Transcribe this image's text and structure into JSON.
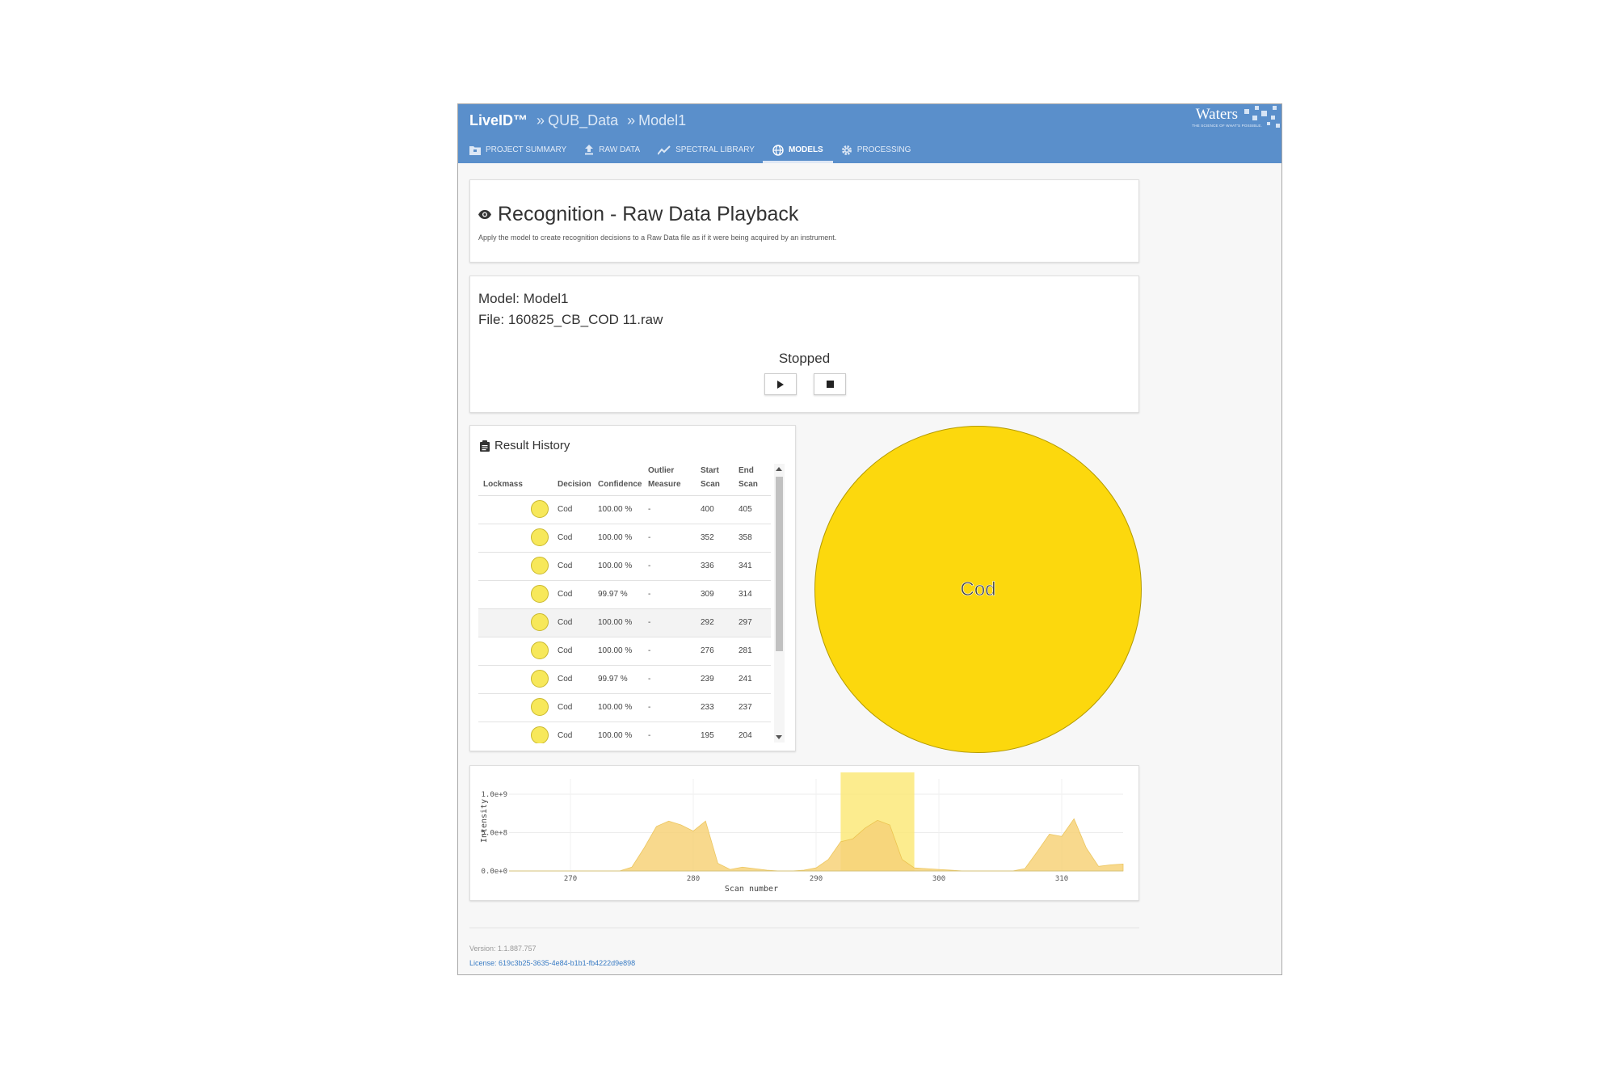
{
  "app": {
    "brand": "LiveID™",
    "breadcrumb_sep": "»",
    "breadcrumb_1": "QUB_Data",
    "breadcrumb_2": "Model1",
    "logo_text": "Waters",
    "logo_tagline": "THE SCIENCE OF WHAT'S POSSIBLE."
  },
  "nav": {
    "items": [
      {
        "label": "PROJECT SUMMARY",
        "icon": "folder-icon"
      },
      {
        "label": "RAW DATA",
        "icon": "upload-icon"
      },
      {
        "label": "SPECTRAL LIBRARY",
        "icon": "line-chart-icon"
      },
      {
        "label": "MODELS",
        "icon": "globe-icon",
        "active": true
      },
      {
        "label": "PROCESSING",
        "icon": "gear-icon"
      }
    ]
  },
  "header": {
    "title": "Recognition - Raw Data Playback",
    "subtitle": "Apply the model to create recognition decisions to a Raw Data file as if it were being acquired by an instrument."
  },
  "playback": {
    "model_line": "Model: Model1",
    "file_line": "File: 160825_CB_COD 11.raw",
    "status": "Stopped"
  },
  "history": {
    "title": "Result History",
    "columns": [
      "Lockmass",
      "Decision",
      "Confidence",
      "Outlier Measure",
      "Start Scan",
      "End Scan"
    ],
    "rows": [
      {
        "decision": "Cod",
        "confidence": "100.00 %",
        "outlier": "-",
        "start": "400",
        "end": "405"
      },
      {
        "decision": "Cod",
        "confidence": "100.00 %",
        "outlier": "-",
        "start": "352",
        "end": "358"
      },
      {
        "decision": "Cod",
        "confidence": "100.00 %",
        "outlier": "-",
        "start": "336",
        "end": "341"
      },
      {
        "decision": "Cod",
        "confidence": "99.97 %",
        "outlier": "-",
        "start": "309",
        "end": "314"
      },
      {
        "decision": "Cod",
        "confidence": "100.00 %",
        "outlier": "-",
        "start": "292",
        "end": "297"
      },
      {
        "decision": "Cod",
        "confidence": "100.00 %",
        "outlier": "-",
        "start": "276",
        "end": "281"
      },
      {
        "decision": "Cod",
        "confidence": "99.97 %",
        "outlier": "-",
        "start": "239",
        "end": "241"
      },
      {
        "decision": "Cod",
        "confidence": "100.00 %",
        "outlier": "-",
        "start": "233",
        "end": "237"
      },
      {
        "decision": "Cod",
        "confidence": "100.00 %",
        "outlier": "-",
        "start": "195",
        "end": "204"
      }
    ]
  },
  "pie": {
    "label": "Cod",
    "color": "#fcd80d",
    "values": [
      {
        "name": "Cod",
        "value": 100
      }
    ]
  },
  "colors": {
    "header_bg": "#5a8fcb",
    "area_fill": "#f7d37a",
    "highlight": "#fbe97a",
    "link": "#3a7cc4"
  },
  "chart_data": {
    "type": "area",
    "xlabel": "Scan number",
    "ylabel": "Intensity",
    "xlim": [
      265,
      315
    ],
    "ylim": [
      0,
      1200000000
    ],
    "xticks": [
      "270",
      "280",
      "290",
      "300",
      "310"
    ],
    "yticks": [
      "0.0e+0",
      "5.0e+8",
      "1.0e+9"
    ],
    "highlight_range": [
      292,
      298
    ],
    "x": [
      265,
      274,
      275,
      276,
      277,
      278,
      279,
      280,
      281,
      282,
      283,
      284,
      285,
      286,
      287,
      288,
      289,
      290,
      291,
      292,
      293,
      294,
      295,
      296,
      297,
      298,
      299,
      300,
      301,
      302,
      303,
      304,
      305,
      306,
      307,
      308,
      309,
      310,
      311,
      312,
      313,
      314,
      315
    ],
    "y": [
      0,
      0,
      50000000,
      300000000,
      580000000,
      650000000,
      600000000,
      520000000,
      650000000,
      100000000,
      20000000,
      50000000,
      30000000,
      10000000,
      0,
      0,
      10000000,
      40000000,
      150000000,
      380000000,
      420000000,
      560000000,
      660000000,
      600000000,
      150000000,
      40000000,
      30000000,
      20000000,
      10000000,
      0,
      0,
      0,
      0,
      0,
      30000000,
      250000000,
      480000000,
      450000000,
      680000000,
      300000000,
      60000000,
      80000000,
      90000000
    ]
  },
  "footer": {
    "version": "Version: 1.1.887.757",
    "license": "License: 619c3b25-3635-4e84-b1b1-fb4222d9e898"
  }
}
